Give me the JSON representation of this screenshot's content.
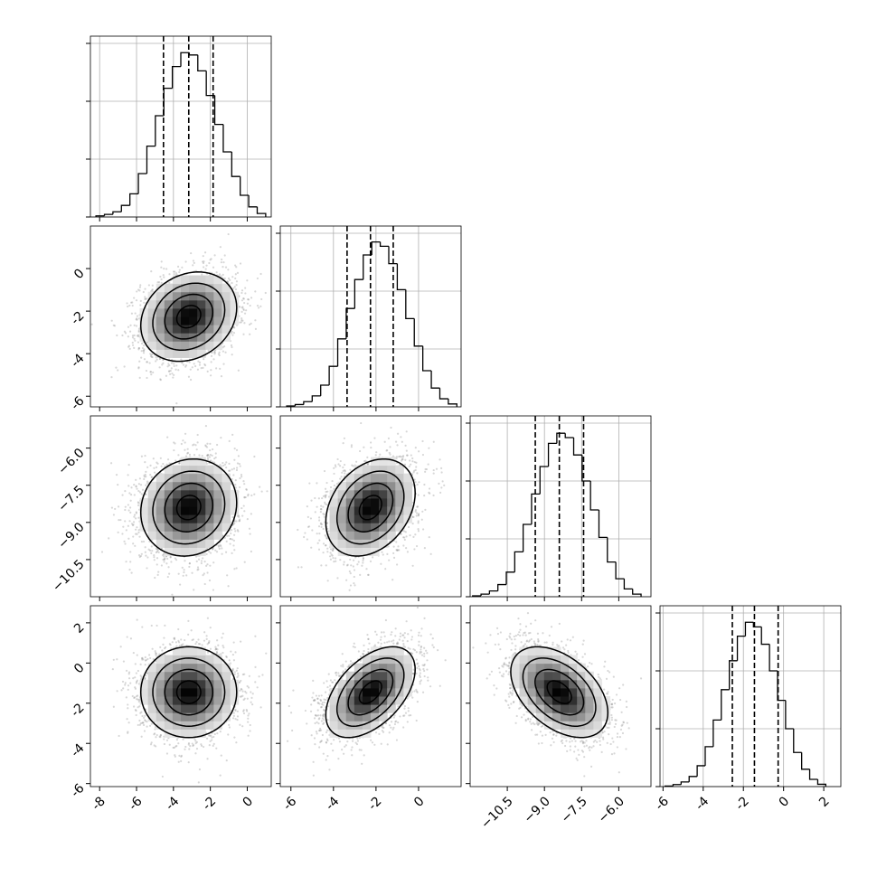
{
  "chart_data": {
    "type": "corner",
    "params": [
      {
        "lim": [
          -8.5,
          1.3
        ],
        "ticks": [
          -8,
          -6,
          -4,
          -2,
          0
        ],
        "quantiles": [
          -4.54,
          -3.17,
          -1.85
        ],
        "sd": 1.3,
        "bins": [
          -8.2,
          -7.74,
          -7.28,
          -6.82,
          -6.36,
          -5.9,
          -5.44,
          -4.98,
          -4.52,
          -4.06,
          -3.6,
          -3.14,
          -2.68,
          -2.22,
          -1.76,
          -1.3,
          -0.84,
          -0.38,
          0.08,
          0.54,
          1.0
        ],
        "counts": [
          4,
          9,
          18,
          40,
          80,
          150,
          245,
          350,
          445,
          520,
          568,
          560,
          505,
          420,
          320,
          225,
          140,
          75,
          35,
          12
        ]
      },
      {
        "lim": [
          -6.5,
          2.0
        ],
        "ticks": [
          -6,
          -4,
          -2,
          0
        ],
        "quantiles": [
          -3.36,
          -2.26,
          -1.19
        ],
        "sd": 1.05,
        "bins": [
          -6.2,
          -5.8,
          -5.4,
          -5.0,
          -4.6,
          -4.2,
          -3.8,
          -3.4,
          -3.0,
          -2.6,
          -2.2,
          -1.8,
          -1.4,
          -1.0,
          -0.6,
          -0.2,
          0.2,
          0.6,
          1.0,
          1.4,
          1.8
        ],
        "counts": [
          3,
          8,
          18,
          38,
          75,
          140,
          235,
          340,
          440,
          525,
          570,
          555,
          495,
          405,
          305,
          210,
          125,
          65,
          28,
          10
        ]
      },
      {
        "lim": [
          -12.0,
          -4.7
        ],
        "ticks": [
          {
            "value": -10.5,
            "label": "−10.5"
          },
          {
            "value": -9.0,
            "label": "−9.0"
          },
          {
            "value": -7.5,
            "label": "−7.5"
          },
          {
            "value": -6.0,
            "label": "−6.0"
          }
        ],
        "quantiles": [
          -9.37,
          -8.4,
          -7.42
        ],
        "sd": 0.98,
        "bins": [
          -11.9,
          -11.56,
          -11.22,
          -10.88,
          -10.54,
          -10.2,
          -9.86,
          -9.52,
          -9.18,
          -8.84,
          -8.5,
          -8.16,
          -7.82,
          -7.48,
          -7.14,
          -6.8,
          -6.46,
          -6.12,
          -5.78,
          -5.44,
          -5.1
        ],
        "counts": [
          3,
          9,
          20,
          42,
          85,
          155,
          250,
          355,
          450,
          530,
          565,
          550,
          490,
          400,
          300,
          205,
          120,
          62,
          27,
          9
        ]
      },
      {
        "lim": [
          -6.15,
          2.85
        ],
        "ticks": [
          -6,
          -4,
          -2,
          0,
          2
        ],
        "quantiles": [
          -2.55,
          -1.45,
          -0.27
        ],
        "sd": 1.13,
        "bins": [
          -5.9,
          -5.5,
          -5.1,
          -4.7,
          -4.3,
          -3.9,
          -3.5,
          -3.1,
          -2.7,
          -2.3,
          -1.9,
          -1.5,
          -1.1,
          -0.7,
          -0.3,
          0.1,
          0.5,
          0.9,
          1.3,
          1.7,
          2.1
        ],
        "counts": [
          2,
          7,
          16,
          35,
          72,
          138,
          230,
          335,
          435,
          520,
          568,
          552,
          492,
          400,
          298,
          200,
          118,
          60,
          25,
          8
        ]
      }
    ],
    "pairs": [
      {
        "x": 0,
        "y": 1,
        "rho": 0.2
      },
      {
        "x": 0,
        "y": 2,
        "rho": 0.1
      },
      {
        "x": 1,
        "y": 2,
        "rho": 0.3
      },
      {
        "x": 0,
        "y": 3,
        "rho": 0.0
      },
      {
        "x": 1,
        "y": 3,
        "rho": 0.5
      },
      {
        "x": 2,
        "y": 3,
        "rho": -0.45
      }
    ],
    "hist_ylim": [
      0,
      625
    ],
    "hist_yticks": [
      0,
      200,
      400,
      600
    ],
    "contour_levels": [
      0.5,
      1,
      1.5,
      2
    ],
    "grid": true
  }
}
